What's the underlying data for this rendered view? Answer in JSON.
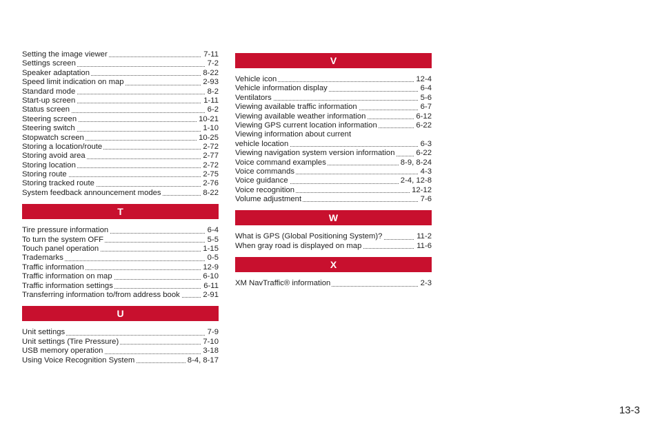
{
  "columns": [
    {
      "groups": [
        {
          "entries": [
            {
              "label": "Setting the image viewer",
              "page": "7-11"
            },
            {
              "label": "Settings screen",
              "page": "7-2"
            },
            {
              "label": "Speaker adaptation",
              "page": "8-22"
            },
            {
              "label": "Speed limit indication on map",
              "page": "2-93"
            },
            {
              "label": "Standard mode",
              "page": "8-2"
            },
            {
              "label": "Start-up screen",
              "page": "1-11"
            },
            {
              "label": "Status screen",
              "page": "6-2"
            },
            {
              "label": "Steering screen",
              "page": "10-21"
            },
            {
              "label": "Steering switch",
              "page": "1-10"
            },
            {
              "label": "Stopwatch screen",
              "page": "10-25"
            },
            {
              "label": "Storing a location/route",
              "page": "2-72"
            },
            {
              "label": "Storing avoid area",
              "page": "2-77"
            },
            {
              "label": "Storing location",
              "page": "2-72"
            },
            {
              "label": "Storing route",
              "page": "2-75"
            },
            {
              "label": "Storing tracked route",
              "page": "2-76"
            },
            {
              "label": "System feedback announcement modes",
              "page": "8-22"
            }
          ]
        },
        {
          "letter": "T",
          "entries": [
            {
              "label": "Tire pressure information",
              "page": "6-4"
            },
            {
              "label": "To turn the system OFF",
              "page": "5-5"
            },
            {
              "label": "Touch panel operation",
              "page": "1-15"
            },
            {
              "label": "Trademarks",
              "page": "0-5"
            },
            {
              "label": "Traffic information",
              "page": "12-9"
            },
            {
              "label": "Traffic information on map",
              "page": "6-10"
            },
            {
              "label": "Traffic information settings",
              "page": "6-11"
            },
            {
              "label": "Transferring information to/from address book",
              "page": "2-91"
            }
          ]
        },
        {
          "letter": "U",
          "entries": [
            {
              "label": "Unit settings",
              "page": "7-9"
            },
            {
              "label": "Unit settings (Tire Pressure)",
              "page": "7-10"
            },
            {
              "label": "USB memory operation",
              "page": "3-18"
            },
            {
              "label": "Using Voice Recognition System",
              "page": "8-4, 8-17"
            }
          ]
        }
      ]
    },
    {
      "groups": [
        {
          "letter": "V",
          "entries": [
            {
              "label": "Vehicle icon",
              "page": "12-4"
            },
            {
              "label": "Vehicle information display",
              "page": "6-4"
            },
            {
              "label": "Ventilators",
              "page": "5-6"
            },
            {
              "label": "Viewing available traffic information",
              "page": "6-7"
            },
            {
              "label": "Viewing available weather information",
              "page": "6-12"
            },
            {
              "label": "Viewing GPS current location information",
              "page": "6-22"
            },
            {
              "label": [
                "Viewing information about current",
                "vehicle location"
              ],
              "page": "6-3"
            },
            {
              "label": "Viewing navigation system version information",
              "page": "6-22"
            },
            {
              "label": "Voice command examples",
              "page": "8-9, 8-24"
            },
            {
              "label": "Voice commands",
              "page": "4-3"
            },
            {
              "label": "Voice guidance",
              "page": "2-4, 12-8"
            },
            {
              "label": "Voice recognition",
              "page": "12-12"
            },
            {
              "label": "Volume adjustment",
              "page": "7-6"
            }
          ]
        },
        {
          "letter": "W",
          "entries": [
            {
              "label": "What is GPS (Global Positioning System)?",
              "page": "11-2"
            },
            {
              "label": "When gray road is displayed on map",
              "page": "11-6"
            }
          ]
        },
        {
          "letter": "X",
          "entries": [
            {
              "label": "XM NavTraffic® information",
              "page": "2-3"
            }
          ]
        }
      ]
    }
  ],
  "page_number": "13-3"
}
